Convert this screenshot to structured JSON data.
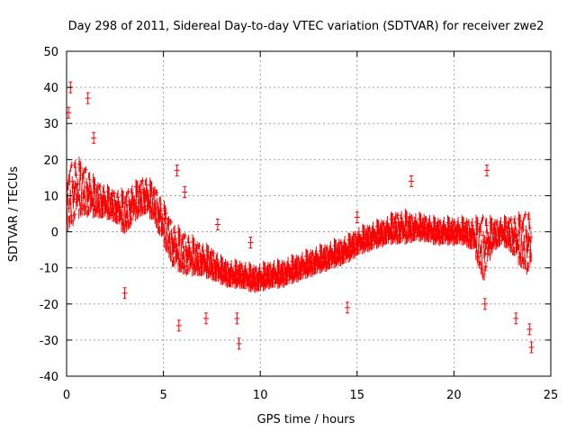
{
  "chart_data": {
    "type": "scatter",
    "title": "Day 298 of 2011, Sidereal Day-to-day VTEC variation (SDTVAR) for receiver zwe2",
    "xlabel": "GPS time / hours",
    "ylabel": "SDTVAR / TECUs",
    "xlim": [
      0,
      25
    ],
    "ylim": [
      -40,
      50
    ],
    "xticks": [
      "0",
      "5",
      "10",
      "15",
      "20",
      "25"
    ],
    "yticks": [
      "-40",
      "-30",
      "-20",
      "-10",
      "0",
      "10",
      "20",
      "30",
      "40",
      "50"
    ],
    "grid": true,
    "series": [
      {
        "name": "SDTVAR",
        "color": "#ff0000",
        "marker": "plus-with-errorbar",
        "trend": {
          "x": [
            0,
            0.5,
            1,
            1.5,
            2,
            2.5,
            3,
            3.5,
            4,
            4.5,
            5,
            5.5,
            6,
            6.5,
            7,
            7.5,
            8,
            8.5,
            9,
            9.5,
            10,
            10.5,
            11,
            11.5,
            12,
            12.5,
            13,
            13.5,
            14,
            14.5,
            15,
            15.5,
            16,
            16.5,
            17,
            17.5,
            18,
            18.5,
            19,
            19.5,
            20,
            20.5,
            21,
            21.5,
            22,
            22.5,
            23,
            23.5,
            24
          ],
          "y": [
            8,
            12,
            11,
            9,
            8,
            7,
            5,
            8,
            10,
            8,
            2,
            -4,
            -6,
            -7,
            -8,
            -9,
            -11,
            -12,
            -12,
            -13,
            -13,
            -12,
            -12,
            -11,
            -10,
            -9,
            -8,
            -7,
            -6,
            -5,
            -3,
            -2,
            -1,
            0,
            1,
            1,
            1,
            1,
            0,
            0,
            0,
            0,
            -1,
            -5,
            -1,
            0,
            -1,
            -3,
            -3
          ],
          "spread": [
            10,
            9,
            7,
            5,
            4,
            4,
            6,
            5,
            5,
            5,
            6,
            6,
            6,
            5,
            4,
            4,
            3,
            3,
            3,
            3,
            3,
            3,
            3,
            3,
            3,
            3,
            3,
            3,
            3,
            3,
            3,
            3,
            3,
            3,
            4,
            4,
            3,
            3,
            3,
            3,
            3,
            3,
            4,
            10,
            4,
            3,
            5,
            8,
            10
          ]
        },
        "outliers": [
          {
            "x": 0.2,
            "y": 40
          },
          {
            "x": 0.1,
            "y": 33
          },
          {
            "x": 1.1,
            "y": 37
          },
          {
            "x": 1.4,
            "y": 26
          },
          {
            "x": 3.0,
            "y": -17
          },
          {
            "x": 5.7,
            "y": 17
          },
          {
            "x": 5.8,
            "y": -26
          },
          {
            "x": 6.1,
            "y": 11
          },
          {
            "x": 7.2,
            "y": -24
          },
          {
            "x": 7.8,
            "y": 2
          },
          {
            "x": 8.8,
            "y": -24
          },
          {
            "x": 8.9,
            "y": -31
          },
          {
            "x": 9.5,
            "y": -3
          },
          {
            "x": 14.5,
            "y": -21
          },
          {
            "x": 15.0,
            "y": 4
          },
          {
            "x": 17.8,
            "y": 14
          },
          {
            "x": 21.7,
            "y": 17
          },
          {
            "x": 21.6,
            "y": -20
          },
          {
            "x": 23.2,
            "y": -24
          },
          {
            "x": 23.9,
            "y": -27
          },
          {
            "x": 24.0,
            "y": -32
          }
        ]
      }
    ]
  }
}
